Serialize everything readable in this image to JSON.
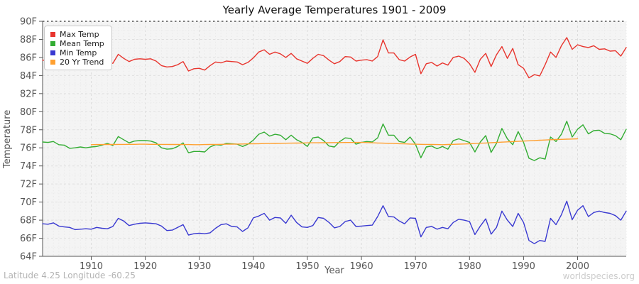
{
  "chart_data": {
    "type": "line",
    "title": "Yearly Average Temperatures 1901 - 2009",
    "xlabel": "Year",
    "ylabel": "Temperature",
    "x_start": 1901,
    "x_end": 2009,
    "ylim": [
      64,
      90
    ],
    "grid": true,
    "legend_position": "top-left",
    "plot_background": "#f4f4f4",
    "y_ticks": [
      "90F",
      "88F",
      "86F",
      "84F",
      "82F",
      "80F",
      "78F",
      "76F",
      "74F",
      "72F",
      "70F",
      "68F",
      "66F",
      "64F"
    ],
    "x_ticks": [
      "1910",
      "1920",
      "1930",
      "1940",
      "1950",
      "1960",
      "1970",
      "1980",
      "1990",
      "2000"
    ],
    "series": [
      {
        "name": "Max Temp",
        "color": "#e8352e",
        "start_year": 1901,
        "values": [
          85.7,
          85.65,
          85.75,
          85.6,
          85.2,
          85.15,
          85.15,
          85.2,
          85.15,
          85.2,
          85.2,
          85.3,
          85.5,
          85.35,
          86.35,
          85.9,
          85.55,
          85.8,
          85.85,
          85.8,
          85.85,
          85.6,
          85.1,
          84.95,
          85.0,
          85.2,
          85.55,
          84.5,
          84.75,
          84.8,
          84.6,
          85.1,
          85.5,
          85.4,
          85.6,
          85.55,
          85.5,
          85.2,
          85.45,
          85.95,
          86.6,
          86.85,
          86.35,
          86.6,
          86.4,
          86.0,
          86.45,
          85.85,
          85.6,
          85.35,
          85.9,
          86.35,
          86.2,
          85.7,
          85.3,
          85.55,
          86.1,
          86.05,
          85.6,
          85.7,
          85.75,
          85.6,
          86.1,
          87.95,
          86.5,
          86.5,
          85.75,
          85.6,
          86.05,
          86.35,
          84.2,
          85.3,
          85.45,
          85.05,
          85.4,
          85.15,
          86.0,
          86.15,
          85.9,
          85.3,
          84.35,
          85.8,
          86.45,
          85.0,
          86.3,
          87.2,
          85.9,
          87.0,
          85.2,
          84.8,
          83.75,
          84.1,
          83.95,
          85.2,
          86.6,
          86.0,
          87.3,
          88.2,
          86.9,
          87.4,
          87.2,
          87.1,
          87.3,
          86.9,
          86.95,
          86.7,
          86.75,
          86.15,
          87.1
        ]
      },
      {
        "name": "Mean Temp",
        "color": "#33ad33",
        "start_year": 1901,
        "values": [
          76.65,
          76.6,
          76.7,
          76.35,
          76.3,
          75.95,
          76.0,
          76.1,
          76.0,
          76.1,
          76.15,
          76.3,
          76.5,
          76.25,
          77.25,
          76.9,
          76.55,
          76.75,
          76.8,
          76.8,
          76.75,
          76.55,
          76.0,
          75.85,
          75.9,
          76.15,
          76.55,
          75.45,
          75.6,
          75.6,
          75.55,
          76.1,
          76.35,
          76.3,
          76.5,
          76.45,
          76.4,
          76.15,
          76.4,
          76.85,
          77.5,
          77.75,
          77.3,
          77.5,
          77.4,
          76.9,
          77.4,
          76.9,
          76.6,
          76.15,
          77.1,
          77.2,
          76.8,
          76.2,
          76.1,
          76.7,
          77.1,
          77.05,
          76.4,
          76.6,
          76.7,
          76.65,
          77.1,
          78.65,
          77.4,
          77.4,
          76.7,
          76.6,
          77.2,
          76.4,
          74.9,
          76.1,
          76.2,
          75.9,
          76.15,
          75.85,
          76.8,
          77.0,
          76.8,
          76.6,
          75.55,
          76.65,
          77.35,
          75.5,
          76.5,
          78.15,
          77.0,
          76.35,
          77.8,
          76.6,
          74.85,
          74.6,
          74.9,
          74.75,
          77.2,
          76.7,
          77.5,
          78.95,
          77.2,
          78.05,
          78.55,
          77.55,
          77.9,
          77.95,
          77.6,
          77.55,
          77.35,
          76.9,
          78.05
        ]
      },
      {
        "name": "Min Temp",
        "color": "#3939d1",
        "start_year": 1901,
        "values": [
          67.6,
          67.55,
          67.7,
          67.35,
          67.25,
          67.2,
          66.95,
          67.0,
          67.05,
          67.0,
          67.2,
          67.1,
          67.05,
          67.3,
          68.2,
          67.9,
          67.4,
          67.55,
          67.65,
          67.7,
          67.65,
          67.6,
          67.35,
          66.85,
          66.9,
          67.2,
          67.5,
          66.35,
          66.5,
          66.55,
          66.5,
          66.6,
          67.1,
          67.5,
          67.6,
          67.3,
          67.25,
          66.75,
          67.15,
          68.25,
          68.45,
          68.75,
          68.0,
          68.3,
          68.25,
          67.65,
          68.55,
          67.75,
          67.25,
          67.2,
          67.4,
          68.3,
          68.2,
          67.75,
          67.15,
          67.3,
          67.85,
          68.0,
          67.3,
          67.35,
          67.4,
          67.45,
          68.4,
          69.6,
          68.4,
          68.35,
          67.9,
          67.6,
          68.25,
          68.2,
          66.15,
          67.2,
          67.3,
          67.0,
          67.2,
          67.05,
          67.75,
          68.1,
          68.0,
          67.85,
          66.4,
          67.35,
          68.15,
          66.45,
          67.2,
          69.0,
          68.0,
          67.3,
          68.75,
          67.75,
          65.75,
          65.4,
          65.75,
          65.65,
          68.2,
          67.5,
          68.6,
          70.1,
          68.05,
          69.1,
          69.6,
          68.4,
          68.85,
          69.0,
          68.85,
          68.75,
          68.5,
          68.0,
          69.0
        ]
      },
      {
        "name": "20 Yr Trend",
        "color": "#ffa030",
        "start_year": 1910,
        "values": [
          76.35,
          76.36,
          76.36,
          76.37,
          76.37,
          76.38,
          76.38,
          76.39,
          76.39,
          76.4,
          76.4,
          76.39,
          76.39,
          76.38,
          76.38,
          76.37,
          76.37,
          76.36,
          76.36,
          76.35,
          76.35,
          76.36,
          76.37,
          76.38,
          76.39,
          76.4,
          76.41,
          76.42,
          76.43,
          76.44,
          76.45,
          76.46,
          76.47,
          76.48,
          76.49,
          76.5,
          76.51,
          76.52,
          76.53,
          76.54,
          76.55,
          76.56,
          76.56,
          76.57,
          76.57,
          76.58,
          76.58,
          76.59,
          76.59,
          76.6,
          76.6,
          76.58,
          76.56,
          76.54,
          76.52,
          76.5,
          76.48,
          76.46,
          76.44,
          76.42,
          76.4,
          76.39,
          76.38,
          76.37,
          76.36,
          76.35,
          76.37,
          76.39,
          76.41,
          76.43,
          76.45,
          76.48,
          76.51,
          76.54,
          76.57,
          76.6,
          76.63,
          76.66,
          76.69,
          76.72,
          76.75,
          76.78,
          76.81,
          76.84,
          76.87,
          76.9,
          76.92,
          76.94,
          76.96,
          76.98,
          77.0
        ]
      }
    ]
  },
  "footer": {
    "left": "Latitude 4.25 Longitude -60.25",
    "right": "worldspecies.org"
  }
}
